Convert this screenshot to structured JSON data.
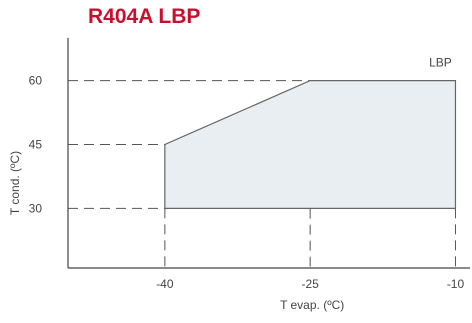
{
  "chart_data": {
    "type": "area",
    "title": "R404A LBP",
    "title_color": "#c8102e",
    "xlabel": "T evap. (ºC)",
    "ylabel": "T cond. (ºC)",
    "xlim": [
      -50,
      -8.5
    ],
    "ylim": [
      16,
      70
    ],
    "x_ticks": [
      -40,
      -25,
      -10
    ],
    "x_tick_labels": [
      "-40",
      "-25",
      "-10"
    ],
    "y_ticks": [
      30,
      45,
      60
    ],
    "y_tick_labels": [
      "30",
      "45",
      "60"
    ],
    "grid": false,
    "guide_lines": "dashed",
    "series": [
      {
        "name": "LBP",
        "points": [
          [
            -40,
            30
          ],
          [
            -40,
            45
          ],
          [
            -25,
            60
          ],
          [
            -10,
            60
          ],
          [
            -10,
            30
          ]
        ]
      }
    ],
    "colors": {
      "fill": "#e8eef2",
      "line": "#666666",
      "axis": "#444444",
      "dash": "#555555",
      "text": "#444444"
    }
  }
}
